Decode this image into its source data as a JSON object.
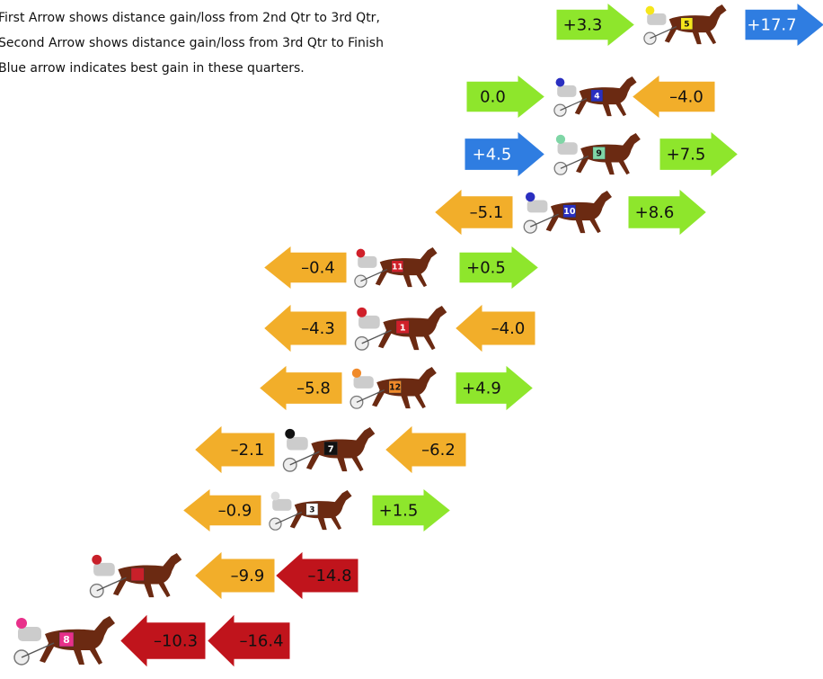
{
  "notes": [
    "First Arrow shows distance gain/loss from 2nd Qtr to 3rd Qtr,",
    "Second Arrow shows distance gain/loss from 3rd Qtr to Finish",
    "Blue arrow indicates best gain in these quarters."
  ],
  "rows": [
    {
      "horse": "5",
      "cloth": "#f5e61c",
      "arrows": [
        {
          "label": "+3.3",
          "color": "#8ee62c",
          "direction": "right"
        },
        {
          "label": "+17.7",
          "color": "#2f7de1",
          "direction": "right"
        }
      ]
    },
    {
      "horse": "4",
      "cloth": "#2a2fc0",
      "arrows": [
        {
          "label": "0.0",
          "color": "#8ee62c",
          "direction": "right"
        },
        {
          "label": "–4.0",
          "color": "#f2ae2a",
          "direction": "left"
        }
      ]
    },
    {
      "horse": "9",
      "cloth": "#7fd6a6",
      "arrows": [
        {
          "label": "+4.5",
          "color": "#2f7de1",
          "direction": "right"
        },
        {
          "label": "+7.5",
          "color": "#8ee62c",
          "direction": "right"
        }
      ]
    },
    {
      "horse": "10",
      "cloth": "#2a2fc0",
      "arrows": [
        {
          "label": "–5.1",
          "color": "#f2ae2a",
          "direction": "left"
        },
        {
          "label": "+8.6",
          "color": "#8ee62c",
          "direction": "right"
        }
      ]
    },
    {
      "horse": "11",
      "cloth": "#d0202a",
      "arrows": [
        {
          "label": "–0.4",
          "color": "#f2ae2a",
          "direction": "left"
        },
        {
          "label": "+0.5",
          "color": "#8ee62c",
          "direction": "right"
        }
      ]
    },
    {
      "horse": "1",
      "cloth": "#d0202a",
      "arrows": [
        {
          "label": "–4.3",
          "color": "#f2ae2a",
          "direction": "left"
        },
        {
          "label": "–4.0",
          "color": "#f2ae2a",
          "direction": "left"
        }
      ]
    },
    {
      "horse": "12",
      "cloth": "#f08a2a",
      "arrows": [
        {
          "label": "–5.8",
          "color": "#f2ae2a",
          "direction": "left"
        },
        {
          "label": "+4.9",
          "color": "#8ee62c",
          "direction": "right"
        }
      ]
    },
    {
      "horse": "7",
      "cloth": "#111111",
      "arrows": [
        {
          "label": "–2.1",
          "color": "#f2ae2a",
          "direction": "left"
        },
        {
          "label": "–6.2",
          "color": "#f2ae2a",
          "direction": "left"
        }
      ]
    },
    {
      "horse": "3",
      "cloth": "#ffffff",
      "arrows": [
        {
          "label": "–0.9",
          "color": "#f2ae2a",
          "direction": "left"
        },
        {
          "label": "+1.5",
          "color": "#8ee62c",
          "direction": "right"
        }
      ]
    },
    {
      "horse": null,
      "cloth": "#c8202a",
      "arrows": [
        {
          "label": "–9.9",
          "color": "#f2ae2a",
          "direction": "left"
        },
        {
          "label": "–14.8",
          "color": "#c0141c",
          "direction": "left"
        }
      ]
    },
    {
      "horse": "8",
      "cloth": "#e8308a",
      "arrows": [
        {
          "label": "–10.3",
          "color": "#c0141c",
          "direction": "left"
        },
        {
          "label": "–16.4",
          "color": "#c0141c",
          "direction": "left"
        }
      ]
    }
  ]
}
